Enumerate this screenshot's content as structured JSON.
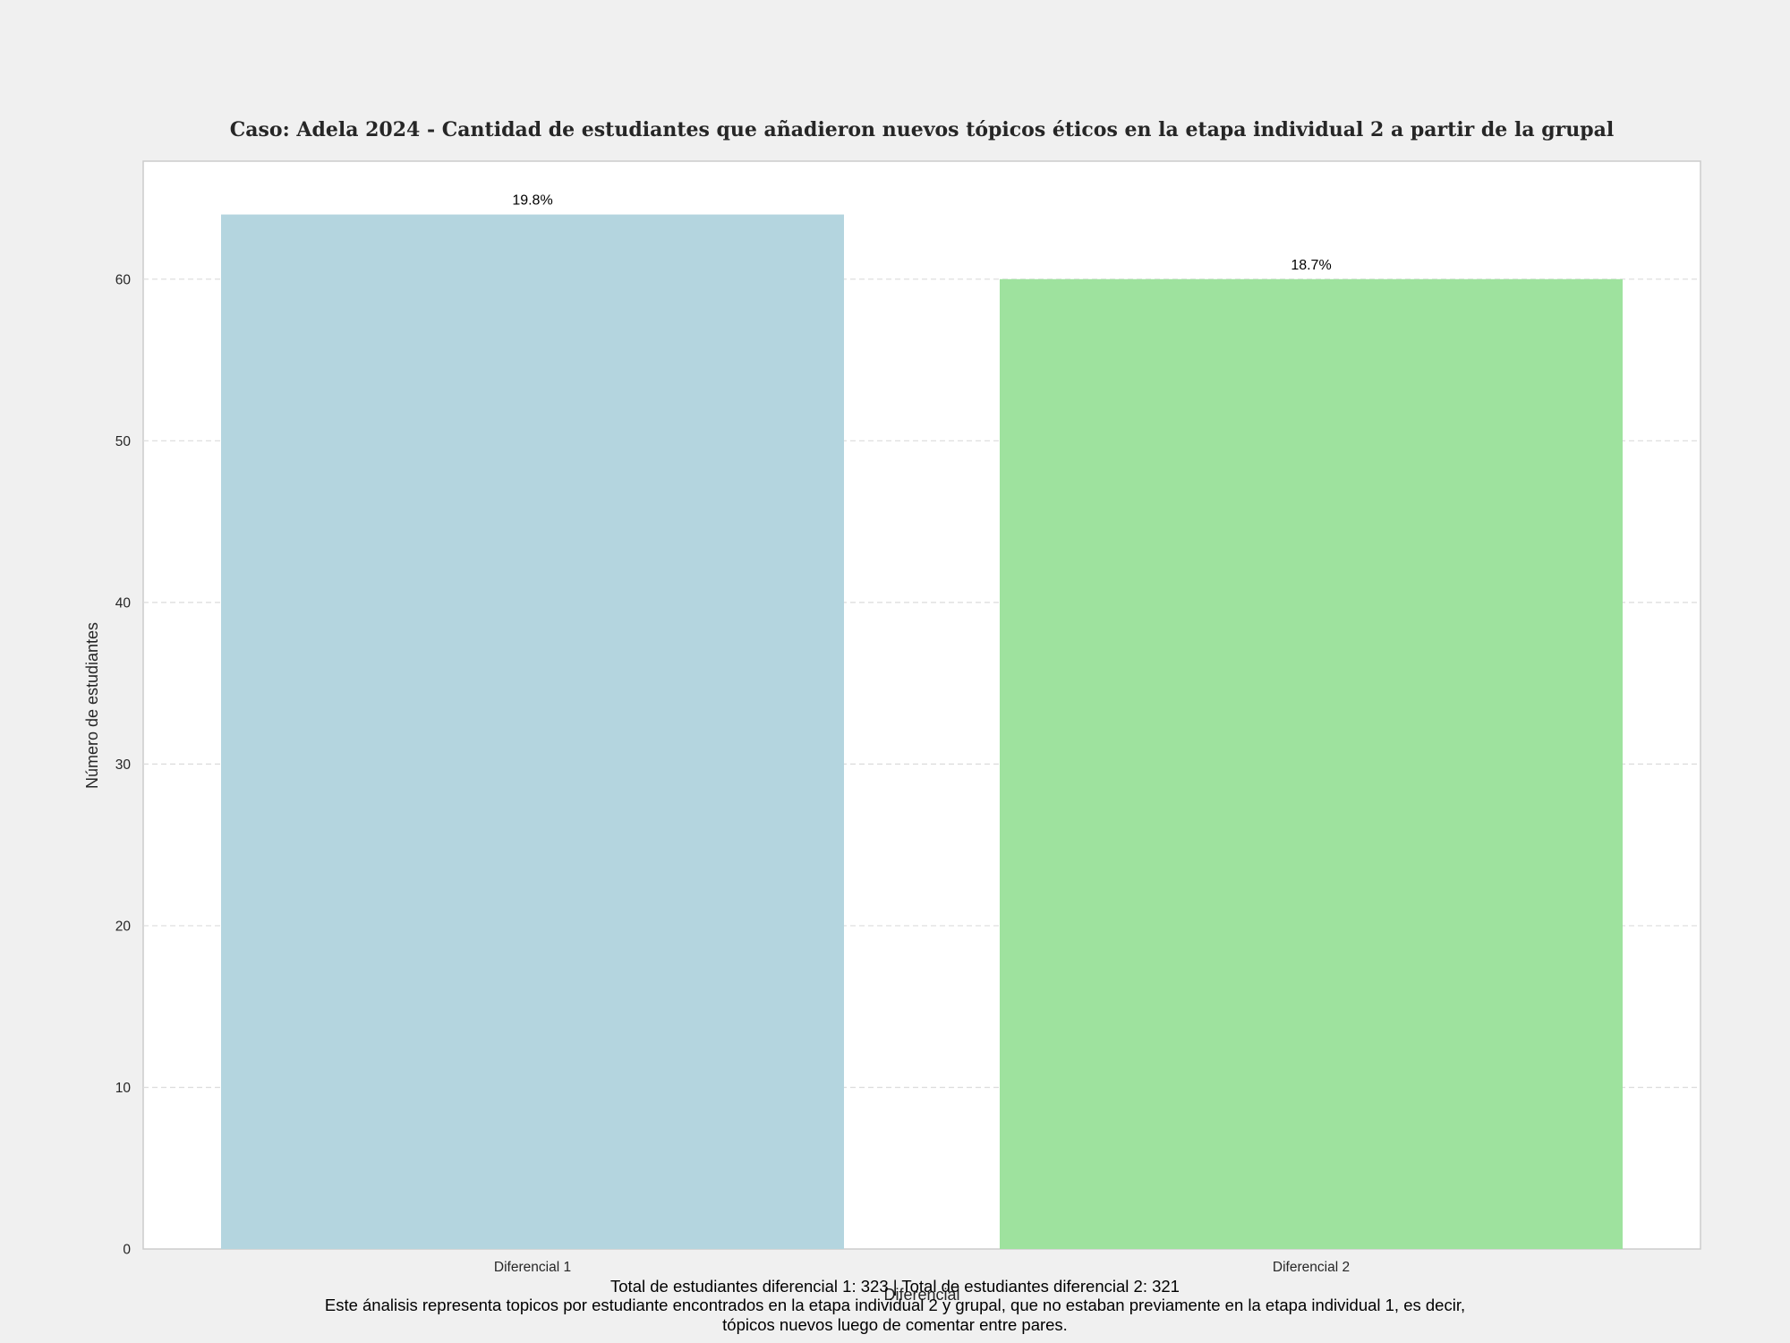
{
  "chart_data": {
    "type": "bar",
    "title": "Caso: Adela 2024 - Cantidad de estudiantes que añadieron nuevos tópicos éticos en la etapa individual 2 a partir de la grupal",
    "xlabel": "Diferencial",
    "ylabel": "Número de estudiantes",
    "categories": [
      "Diferencial 1",
      "Diferencial 2"
    ],
    "values": [
      64,
      60
    ],
    "data_labels": [
      "19.8%",
      "18.7%"
    ],
    "colors": [
      "#b4d5df",
      "#9ee29e"
    ],
    "ylim": [
      0,
      67.3
    ],
    "yticks": [
      0,
      10,
      20,
      30,
      40,
      50,
      60
    ],
    "ytick_labels": [
      "0",
      "10",
      "20",
      "30",
      "40",
      "50",
      "60"
    ],
    "grid": "y-dashed",
    "legend": "none",
    "footnote_lines": [
      "Total de estudiantes diferencial 1: 323 | Total de estudiantes diferencial 2: 321",
      "Este ánalisis representa topicos por estudiante encontrados en la etapa individual 2 y grupal, que no estaban previamente en la etapa individual 1, es decir,",
      "tópicos nuevos luego de comentar entre pares."
    ]
  }
}
